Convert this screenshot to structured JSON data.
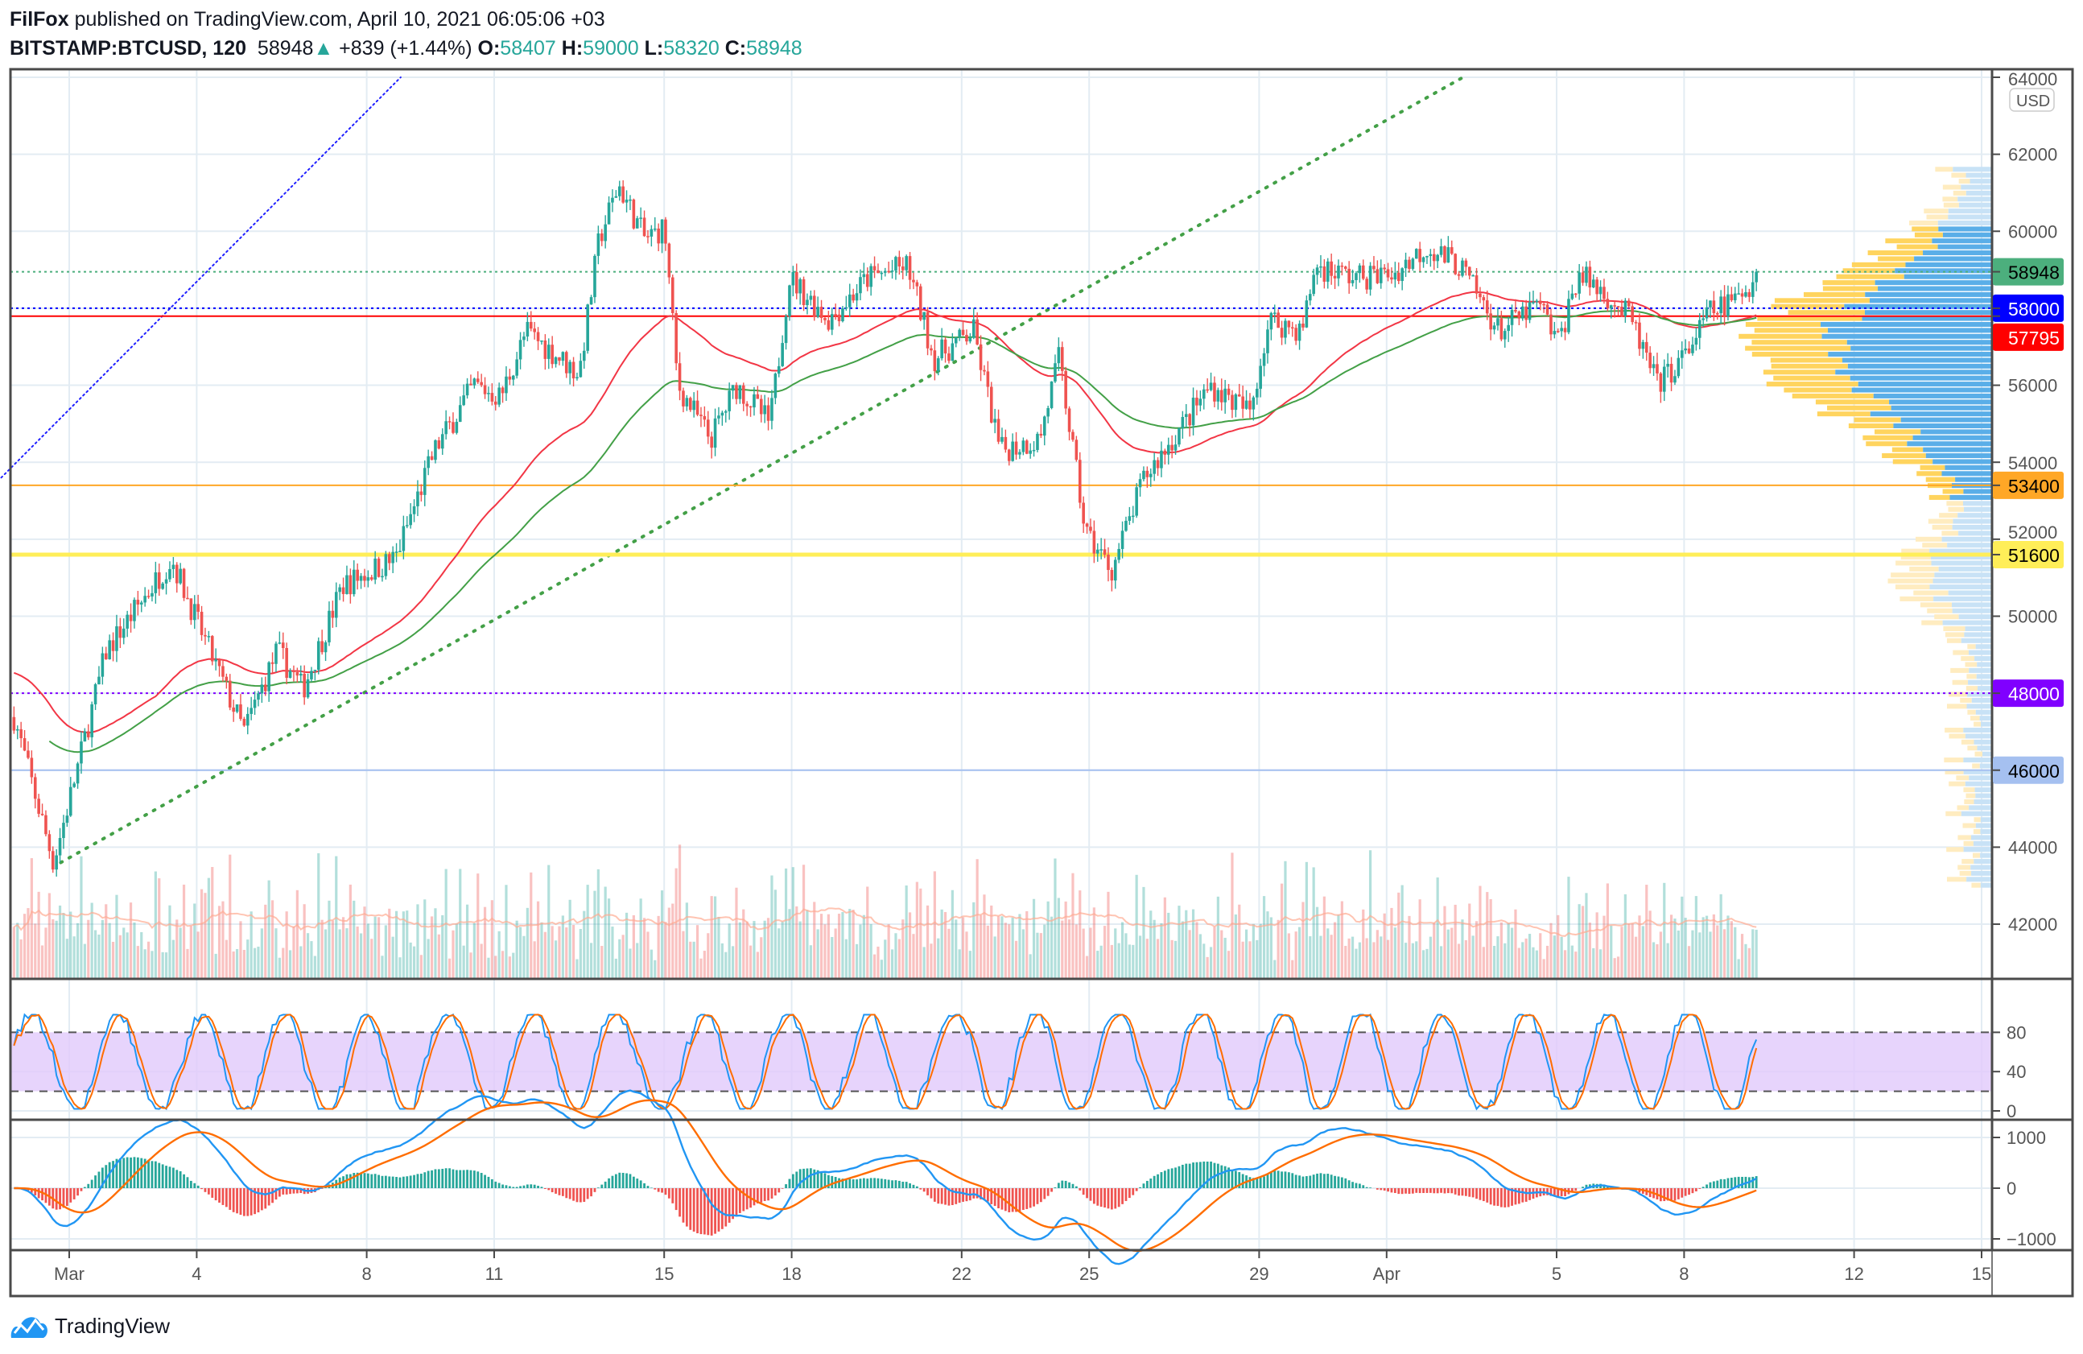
{
  "header": {
    "author": "FilFox",
    "published": "published on TradingView.com, April 10, 2021 06:05:06 +03",
    "symbol": "BITSTAMP:BTCUSD, 120",
    "last": "58948",
    "change": "+839 (+1.44%)",
    "o_label": "O:",
    "o": "58407",
    "h_label": "H:",
    "h": "59000",
    "l_label": "L:",
    "l": "58320",
    "c_label": "C:",
    "c": "58948"
  },
  "currency": "USD",
  "brand": "TradingView",
  "chart_data": {
    "type": "candlestick",
    "interval": "120",
    "x_unit": "days since Mar 1, 2021",
    "price_waypoints": [
      [
        -1.3,
        47380
      ],
      [
        -0.37,
        43600
      ],
      [
        0.25,
        46300
      ],
      [
        0.87,
        49100
      ],
      [
        2.41,
        51500
      ],
      [
        3.03,
        49800
      ],
      [
        4.11,
        47000
      ],
      [
        4.89,
        49100
      ],
      [
        5.5,
        48100
      ],
      [
        6.43,
        50800
      ],
      [
        7.67,
        51500
      ],
      [
        8.6,
        54300
      ],
      [
        9.53,
        56000
      ],
      [
        10.15,
        55700
      ],
      [
        10.76,
        57400
      ],
      [
        12.0,
        56300
      ],
      [
        12.47,
        59800
      ],
      [
        12.93,
        61200
      ],
      [
        13.55,
        59800
      ],
      [
        14.01,
        60100
      ],
      [
        14.32,
        56000
      ],
      [
        15.09,
        54600
      ],
      [
        15.71,
        56000
      ],
      [
        16.49,
        55000
      ],
      [
        16.95,
        58800
      ],
      [
        17.88,
        57700
      ],
      [
        18.81,
        58800
      ],
      [
        19.73,
        59100
      ],
      [
        20.35,
        56700
      ],
      [
        21.28,
        57400
      ],
      [
        21.9,
        54300
      ],
      [
        22.83,
        54600
      ],
      [
        23.29,
        56700
      ],
      [
        23.91,
        52200
      ],
      [
        24.53,
        51200
      ],
      [
        25.3,
        53600
      ],
      [
        26.23,
        55000
      ],
      [
        26.85,
        56000
      ],
      [
        27.78,
        55300
      ],
      [
        28.24,
        57700
      ],
      [
        29.01,
        57400
      ],
      [
        29.32,
        59100
      ],
      [
        30.25,
        58800
      ],
      [
        31.18,
        58900
      ],
      [
        31.95,
        59600
      ],
      [
        32.72,
        59100
      ],
      [
        33.65,
        57400
      ],
      [
        34.58,
        58100
      ],
      [
        35.04,
        57100
      ],
      [
        35.51,
        58900
      ],
      [
        36.13,
        58400
      ],
      [
        36.75,
        57700
      ],
      [
        37.36,
        56000
      ],
      [
        37.98,
        56700
      ],
      [
        38.6,
        57900
      ],
      [
        39.22,
        58200
      ],
      [
        39.75,
        58948
      ]
    ],
    "price_axis": {
      "ticks": [
        "64000",
        "62000",
        "60000",
        "58000",
        "56000",
        "54000",
        "52000",
        "50000",
        "48000",
        "46000",
        "44000",
        "42000"
      ],
      "range": [
        40800,
        64200
      ]
    },
    "x_ticks": [
      {
        "label": "Mar",
        "day": 0
      },
      {
        "label": "4",
        "day": 3
      },
      {
        "label": "8",
        "day": 7
      },
      {
        "label": "11",
        "day": 10
      },
      {
        "label": "15",
        "day": 14
      },
      {
        "label": "18",
        "day": 17
      },
      {
        "label": "22",
        "day": 21
      },
      {
        "label": "25",
        "day": 24
      },
      {
        "label": "29",
        "day": 28
      },
      {
        "label": "Apr",
        "day": 31
      },
      {
        "label": "5",
        "day": 35
      },
      {
        "label": "8",
        "day": 38
      },
      {
        "label": "12",
        "day": 42
      },
      {
        "label": "15",
        "day": 45
      }
    ],
    "levels": [
      {
        "label": "58948",
        "price": 58948,
        "color": "#4caf7d",
        "style": "dotted",
        "text_color": "#000000"
      },
      {
        "label": "58000",
        "price": 58000,
        "color": "#0000ff",
        "style": "dotted",
        "text_color": "#ffffff"
      },
      {
        "label": "57795",
        "price": 57795,
        "color": "#ff0000",
        "style": "solid",
        "text_color": "#ffffff"
      },
      {
        "label": "53400",
        "price": 53400,
        "color": "#ffa726",
        "style": "solid",
        "text_color": "#000000"
      },
      {
        "label": "51600",
        "price": 51600,
        "color": "#ffee58",
        "style": "thick",
        "text_color": "#000000"
      },
      {
        "label": "48000",
        "price": 48000,
        "color": "#8000ff",
        "style": "dotted",
        "text_color": "#ffffff"
      },
      {
        "label": "46000",
        "price": 46000,
        "color": "#a5c0f0",
        "style": "solid",
        "text_color": "#000000"
      }
    ],
    "trendlines": [
      {
        "color": "#2020ff",
        "from": [
          -1.6,
          53600
        ],
        "to": [
          7.8,
          64000
        ]
      },
      {
        "color": "#43a047",
        "from": [
          -0.2,
          43600
        ],
        "to": [
          32.8,
          64000
        ]
      }
    ],
    "stoch": {
      "ticks": [
        "80",
        "40",
        "0"
      ],
      "upper": 80,
      "lower": 20,
      "range": [
        0,
        100
      ]
    },
    "macd": {
      "ticks": [
        "1000",
        "0",
        "−1000"
      ],
      "range": [
        -1100,
        1100
      ]
    },
    "colors": {
      "up": "#26a69a",
      "down": "#ef5350",
      "ma_fast": "#43a047",
      "ma_slow": "#f23645",
      "k": "#2196f3",
      "d": "#ff6d00"
    }
  }
}
